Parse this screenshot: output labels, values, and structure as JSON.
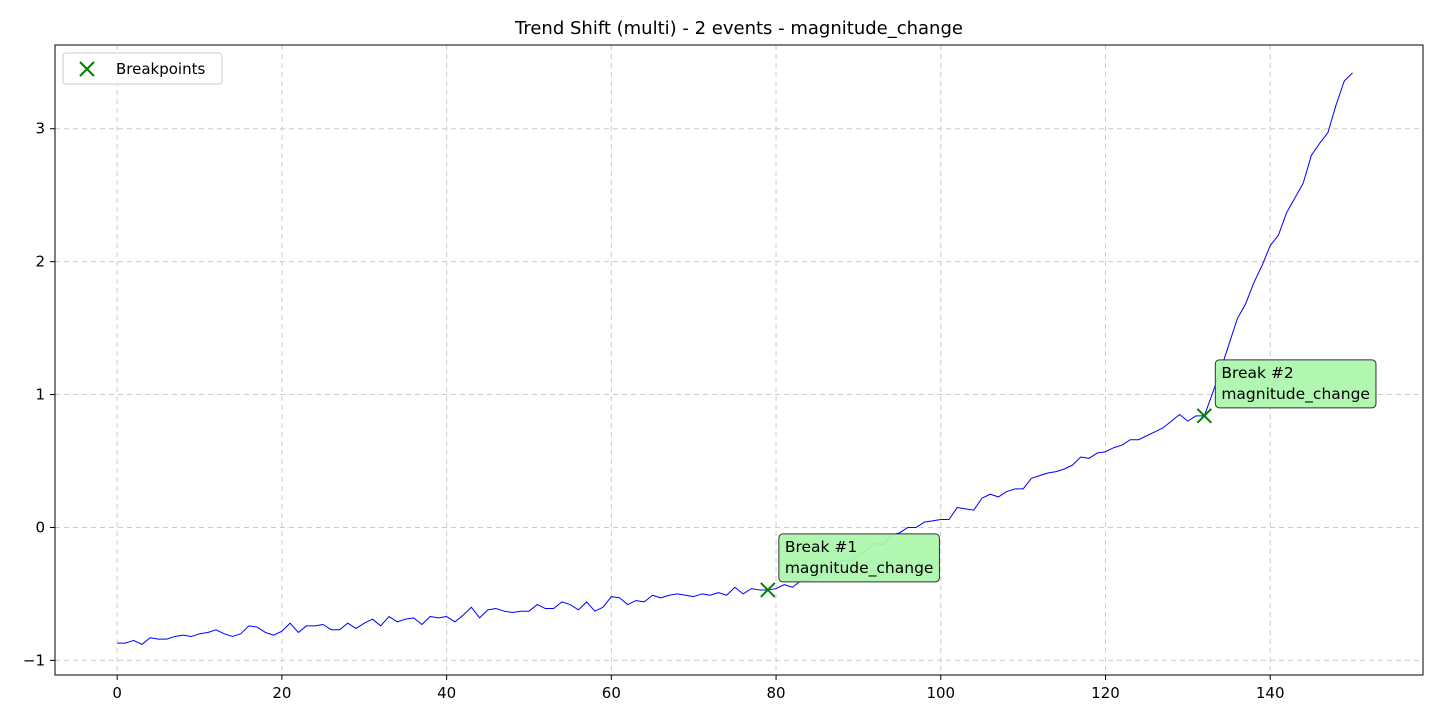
{
  "chart_data": {
    "type": "line",
    "title": "Trend Shift (multi) - 2 events - magnitude_change",
    "xlabel": "",
    "ylabel": "",
    "xlim": [
      -7.55,
      158.55
    ],
    "ylim": [
      -1.11,
      3.63
    ],
    "xticks": [
      0,
      20,
      40,
      60,
      80,
      100,
      120,
      140
    ],
    "yticks": [
      -1,
      0,
      1,
      2,
      3
    ],
    "grid": true,
    "legend": {
      "position": "top-left",
      "entries": [
        "Breakpoints"
      ]
    },
    "series": [
      {
        "color": "#0000ff",
        "x_start": 0,
        "values": [
          -0.87,
          -0.87,
          -0.85,
          -0.88,
          -0.83,
          -0.84,
          -0.84,
          -0.82,
          -0.81,
          -0.82,
          -0.8,
          -0.79,
          -0.77,
          -0.8,
          -0.82,
          -0.8,
          -0.74,
          -0.75,
          -0.79,
          -0.81,
          -0.78,
          -0.72,
          -0.79,
          -0.74,
          -0.74,
          -0.73,
          -0.77,
          -0.77,
          -0.72,
          -0.76,
          -0.72,
          -0.69,
          -0.74,
          -0.67,
          -0.71,
          -0.69,
          -0.68,
          -0.73,
          -0.67,
          -0.68,
          -0.67,
          -0.71,
          -0.66,
          -0.6,
          -0.68,
          -0.62,
          -0.61,
          -0.63,
          -0.64,
          -0.63,
          -0.63,
          -0.58,
          -0.61,
          -0.61,
          -0.56,
          -0.58,
          -0.62,
          -0.56,
          -0.63,
          -0.6,
          -0.52,
          -0.53,
          -0.58,
          -0.55,
          -0.56,
          -0.51,
          -0.53,
          -0.51,
          -0.5,
          -0.51,
          -0.52,
          -0.5,
          -0.51,
          -0.49,
          -0.51,
          -0.45,
          -0.5,
          -0.46,
          -0.47,
          -0.47,
          -0.46,
          -0.43,
          -0.45,
          -0.4,
          -0.39,
          -0.37,
          -0.32,
          -0.27,
          -0.25,
          -0.25,
          -0.21,
          -0.17,
          -0.12,
          -0.13,
          -0.06,
          -0.04,
          0.0,
          0.0,
          0.04,
          0.05,
          0.06,
          0.06,
          0.15,
          0.14,
          0.13,
          0.22,
          0.25,
          0.23,
          0.27,
          0.29,
          0.29,
          0.37,
          0.39,
          0.41,
          0.42,
          0.44,
          0.47,
          0.53,
          0.52,
          0.56,
          0.57,
          0.6,
          0.62,
          0.66,
          0.66,
          0.69,
          0.72,
          0.75,
          0.8,
          0.85,
          0.8,
          0.84,
          0.84,
          1.01,
          1.19,
          1.38,
          1.57,
          1.68,
          1.84,
          1.97,
          2.12,
          2.2,
          2.37,
          2.48,
          2.59,
          2.8,
          2.89,
          2.97,
          3.18,
          3.36,
          3.42
        ]
      }
    ],
    "breakpoints": [
      {
        "x": 79,
        "y": -0.47,
        "label_line1": "Break #1",
        "label_line2": "magnitude_change"
      },
      {
        "x": 132,
        "y": 0.84,
        "label_line1": "Break #2",
        "label_line2": "magnitude_change"
      }
    ],
    "colors": {
      "line": "#0000ff",
      "marker": "#008000",
      "annotation_fill": "#adf5ad",
      "grid": "#cccccc"
    }
  }
}
